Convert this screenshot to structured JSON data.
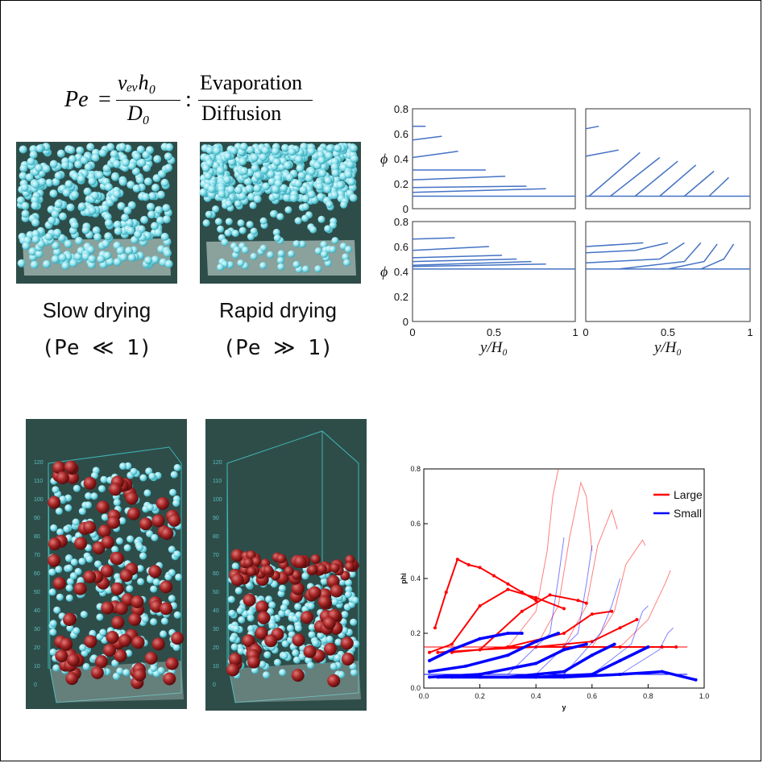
{
  "formula": {
    "lhs": "Pe",
    "equals": "=",
    "numerator": "vₑᵥh₀",
    "denominator": "D₀",
    "separator": ":",
    "top_word": "Evaporation",
    "bottom_word": "Diffusion"
  },
  "captions": {
    "slow": "Slow drying",
    "slow_cond": "(Pe ≪ 1)",
    "rapid": "Rapid drying",
    "rapid_cond": "(Pe ≫ 1)"
  },
  "colors": {
    "curve_blue": "#4472c4",
    "large_red": "#ff0000",
    "small_blue": "#0000ff",
    "sim_bg": "#2e4d49",
    "sphere_cyan": "#8fe3ee",
    "sphere_red": "#9b1c1c"
  },
  "panel_axes": {
    "ylabel": "ϕ",
    "xlabel": "y/H₀",
    "yticks": [
      "0",
      "0.2",
      "0.4",
      "0.6",
      "0.8"
    ],
    "xticks": [
      "0",
      "0.5",
      "1"
    ]
  },
  "sim_axis_labels": [
    "120",
    "110",
    "100",
    "90",
    "80",
    "70",
    "60",
    "50",
    "40",
    "30",
    "20",
    "10",
    "0"
  ],
  "chart_data": [
    {
      "type": "line",
      "title": "",
      "xlabel": "y/H₀",
      "ylabel": "ϕ",
      "xlim": [
        0,
        1
      ],
      "ylim": [
        0,
        0.8
      ],
      "panel": "top-left",
      "series": [
        {
          "name": "s1",
          "x": [
            0.0,
            0.08
          ],
          "y": [
            0.66,
            0.66
          ]
        },
        {
          "name": "s2",
          "x": [
            0.0,
            0.18
          ],
          "y": [
            0.55,
            0.58
          ]
        },
        {
          "name": "s3",
          "x": [
            0.0,
            0.28
          ],
          "y": [
            0.41,
            0.46
          ]
        },
        {
          "name": "s4",
          "x": [
            0.0,
            0.45
          ],
          "y": [
            0.31,
            0.31
          ]
        },
        {
          "name": "s5",
          "x": [
            0.0,
            0.57
          ],
          "y": [
            0.23,
            0.26
          ]
        },
        {
          "name": "s6",
          "x": [
            0.0,
            0.7
          ],
          "y": [
            0.17,
            0.18
          ]
        },
        {
          "name": "s7",
          "x": [
            0.0,
            0.82
          ],
          "y": [
            0.13,
            0.16
          ]
        },
        {
          "name": "baseline",
          "x": [
            0.0,
            1.0
          ],
          "y": [
            0.1,
            0.1
          ]
        }
      ]
    },
    {
      "type": "line",
      "title": "",
      "xlabel": "y/H₀",
      "ylabel": "ϕ",
      "xlim": [
        0,
        1
      ],
      "ylim": [
        0,
        0.8
      ],
      "panel": "top-right",
      "series": [
        {
          "name": "s1",
          "x": [
            0.0,
            0.08
          ],
          "y": [
            0.64,
            0.66
          ]
        },
        {
          "name": "s2",
          "x": [
            0.0,
            0.2
          ],
          "y": [
            0.42,
            0.47
          ]
        },
        {
          "name": "s3",
          "x": [
            0.02,
            0.33
          ],
          "y": [
            0.1,
            0.45
          ]
        },
        {
          "name": "s4",
          "x": [
            0.15,
            0.45
          ],
          "y": [
            0.1,
            0.41
          ]
        },
        {
          "name": "s5",
          "x": [
            0.3,
            0.56
          ],
          "y": [
            0.1,
            0.38
          ]
        },
        {
          "name": "s6",
          "x": [
            0.45,
            0.67
          ],
          "y": [
            0.1,
            0.35
          ]
        },
        {
          "name": "s7",
          "x": [
            0.6,
            0.78
          ],
          "y": [
            0.1,
            0.3
          ]
        },
        {
          "name": "s8",
          "x": [
            0.75,
            0.87
          ],
          "y": [
            0.1,
            0.25
          ]
        },
        {
          "name": "baseline",
          "x": [
            0.0,
            1.0
          ],
          "y": [
            0.1,
            0.1
          ]
        }
      ]
    },
    {
      "type": "line",
      "title": "",
      "xlabel": "y/H₀",
      "ylabel": "ϕ",
      "xlim": [
        0,
        1
      ],
      "ylim": [
        0,
        0.8
      ],
      "panel": "bottom-left",
      "series": [
        {
          "name": "s1",
          "x": [
            0.0,
            0.26
          ],
          "y": [
            0.66,
            0.67
          ]
        },
        {
          "name": "s2",
          "x": [
            0.0,
            0.47
          ],
          "y": [
            0.57,
            0.6
          ]
        },
        {
          "name": "s3",
          "x": [
            0.0,
            0.55
          ],
          "y": [
            0.51,
            0.53
          ]
        },
        {
          "name": "s4",
          "x": [
            0.0,
            0.64
          ],
          "y": [
            0.48,
            0.5
          ]
        },
        {
          "name": "s5",
          "x": [
            0.0,
            0.73
          ],
          "y": [
            0.45,
            0.48
          ]
        },
        {
          "name": "s6",
          "x": [
            0.0,
            0.82
          ],
          "y": [
            0.44,
            0.46
          ]
        },
        {
          "name": "baseline",
          "x": [
            0.0,
            1.0
          ],
          "y": [
            0.42,
            0.42
          ]
        }
      ]
    },
    {
      "type": "line",
      "title": "",
      "xlabel": "y/H₀",
      "ylabel": "ϕ",
      "xlim": [
        0,
        1
      ],
      "ylim": [
        0,
        0.8
      ],
      "panel": "bottom-right",
      "series": [
        {
          "name": "s1",
          "x": [
            0.0,
            0.25,
            0.35
          ],
          "y": [
            0.6,
            0.62,
            0.63
          ]
        },
        {
          "name": "s2",
          "x": [
            0.0,
            0.3,
            0.5
          ],
          "y": [
            0.55,
            0.57,
            0.63
          ]
        },
        {
          "name": "s3",
          "x": [
            0.0,
            0.45,
            0.6
          ],
          "y": [
            0.47,
            0.5,
            0.63
          ]
        },
        {
          "name": "s4",
          "x": [
            0.2,
            0.6,
            0.7
          ],
          "y": [
            0.42,
            0.48,
            0.63
          ]
        },
        {
          "name": "s5",
          "x": [
            0.5,
            0.72,
            0.8
          ],
          "y": [
            0.42,
            0.48,
            0.62
          ]
        },
        {
          "name": "s6",
          "x": [
            0.7,
            0.84,
            0.9
          ],
          "y": [
            0.42,
            0.5,
            0.62
          ]
        },
        {
          "name": "baseline",
          "x": [
            0.0,
            1.0
          ],
          "y": [
            0.42,
            0.42
          ]
        }
      ]
    },
    {
      "type": "line",
      "title": "",
      "xlabel": "y",
      "ylabel": "phi",
      "xlim": [
        0,
        1.0
      ],
      "ylim": [
        0,
        0.8
      ],
      "xticks": [
        "0.0",
        "0.2",
        "0.4",
        "0.6",
        "0.8",
        "1.0"
      ],
      "yticks": [
        "0.0",
        "0.2",
        "0.4",
        "0.6",
        "0.8"
      ],
      "legend": [
        {
          "label": "Large",
          "color": "#ff0000"
        },
        {
          "label": "Small",
          "color": "#0000ff"
        }
      ],
      "series": [
        {
          "name": "Large-baseline",
          "group": "Large",
          "x": [
            0.0,
            0.94
          ],
          "y": [
            0.15,
            0.15
          ]
        },
        {
          "name": "Small-baseline",
          "group": "Small",
          "x": [
            0.0,
            0.94
          ],
          "y": [
            0.05,
            0.05
          ]
        },
        {
          "name": "Large-t1",
          "group": "Large",
          "x": [
            0.04,
            0.08,
            0.12,
            0.16,
            0.2,
            0.25,
            0.3,
            0.35,
            0.4
          ],
          "y": [
            0.22,
            0.35,
            0.47,
            0.45,
            0.44,
            0.41,
            0.38,
            0.35,
            0.32
          ]
        },
        {
          "name": "Large-t2",
          "group": "Large",
          "x": [
            0.02,
            0.1,
            0.2,
            0.3,
            0.4,
            0.5
          ],
          "y": [
            0.13,
            0.16,
            0.3,
            0.36,
            0.33,
            0.29
          ]
        },
        {
          "name": "Large-t3",
          "group": "Large",
          "x": [
            0.05,
            0.2,
            0.35,
            0.45,
            0.55,
            0.58
          ],
          "y": [
            0.13,
            0.14,
            0.28,
            0.34,
            0.32,
            0.31
          ]
        },
        {
          "name": "Large-t4",
          "group": "Large",
          "x": [
            0.1,
            0.3,
            0.5,
            0.6,
            0.67
          ],
          "y": [
            0.13,
            0.15,
            0.2,
            0.27,
            0.28
          ]
        },
        {
          "name": "Large-t5",
          "group": "Large",
          "x": [
            0.2,
            0.4,
            0.6,
            0.7,
            0.76
          ],
          "y": [
            0.14,
            0.15,
            0.17,
            0.22,
            0.25
          ]
        },
        {
          "name": "Large-t6",
          "group": "Large",
          "x": [
            0.3,
            0.5,
            0.7,
            0.85,
            0.9
          ],
          "y": [
            0.15,
            0.15,
            0.15,
            0.15,
            0.15
          ]
        },
        {
          "name": "Large-thin1",
          "group": "Large",
          "x": [
            0.3,
            0.4,
            0.44,
            0.46,
            0.48
          ],
          "y": [
            0.15,
            0.28,
            0.5,
            0.7,
            0.8
          ]
        },
        {
          "name": "Large-thin2",
          "group": "Large",
          "x": [
            0.4,
            0.48,
            0.52,
            0.56,
            0.58,
            0.6
          ],
          "y": [
            0.15,
            0.3,
            0.55,
            0.75,
            0.7,
            0.5
          ]
        },
        {
          "name": "Large-thin3",
          "group": "Large",
          "x": [
            0.5,
            0.58,
            0.62,
            0.67,
            0.69
          ],
          "y": [
            0.15,
            0.3,
            0.52,
            0.65,
            0.58
          ]
        },
        {
          "name": "Large-thin4",
          "group": "Large",
          "x": [
            0.6,
            0.68,
            0.72,
            0.78,
            0.79
          ],
          "y": [
            0.15,
            0.28,
            0.45,
            0.54,
            0.52
          ]
        },
        {
          "name": "Large-thin5",
          "group": "Large",
          "x": [
            0.7,
            0.8,
            0.86,
            0.88
          ],
          "y": [
            0.15,
            0.25,
            0.38,
            0.43
          ]
        },
        {
          "name": "Small-t1",
          "group": "Small",
          "x": [
            0.02,
            0.1,
            0.2,
            0.3,
            0.35
          ],
          "y": [
            0.1,
            0.14,
            0.18,
            0.2,
            0.2
          ]
        },
        {
          "name": "Small-t2",
          "group": "Small",
          "x": [
            0.02,
            0.15,
            0.3,
            0.4,
            0.48
          ],
          "y": [
            0.06,
            0.08,
            0.12,
            0.17,
            0.2
          ]
        },
        {
          "name": "Small-t3",
          "group": "Small",
          "x": [
            0.02,
            0.2,
            0.4,
            0.5,
            0.58
          ],
          "y": [
            0.04,
            0.05,
            0.09,
            0.14,
            0.16
          ]
        },
        {
          "name": "Small-t4",
          "group": "Small",
          "x": [
            0.05,
            0.3,
            0.5,
            0.6,
            0.68
          ],
          "y": [
            0.04,
            0.04,
            0.06,
            0.12,
            0.16
          ]
        },
        {
          "name": "Small-t5",
          "group": "Small",
          "x": [
            0.1,
            0.4,
            0.6,
            0.7,
            0.8
          ],
          "y": [
            0.04,
            0.04,
            0.05,
            0.1,
            0.15
          ]
        },
        {
          "name": "Small-t6",
          "group": "Small",
          "x": [
            0.2,
            0.5,
            0.7,
            0.85,
            0.97
          ],
          "y": [
            0.04,
            0.04,
            0.05,
            0.06,
            0.03
          ]
        },
        {
          "name": "Small-thin1",
          "group": "Small",
          "x": [
            0.3,
            0.45,
            0.48,
            0.5
          ],
          "y": [
            0.05,
            0.2,
            0.4,
            0.55
          ]
        },
        {
          "name": "Small-thin2",
          "group": "Small",
          "x": [
            0.4,
            0.55,
            0.58,
            0.6
          ],
          "y": [
            0.05,
            0.2,
            0.38,
            0.52
          ]
        },
        {
          "name": "Small-thin3",
          "group": "Small",
          "x": [
            0.5,
            0.63,
            0.67,
            0.7
          ],
          "y": [
            0.05,
            0.2,
            0.3,
            0.4
          ]
        },
        {
          "name": "Small-thin4",
          "group": "Small",
          "x": [
            0.6,
            0.74,
            0.78,
            0.8
          ],
          "y": [
            0.05,
            0.16,
            0.28,
            0.3
          ]
        },
        {
          "name": "Small-thin5",
          "group": "Small",
          "x": [
            0.7,
            0.84,
            0.87,
            0.89
          ],
          "y": [
            0.05,
            0.14,
            0.2,
            0.22
          ]
        }
      ]
    }
  ]
}
